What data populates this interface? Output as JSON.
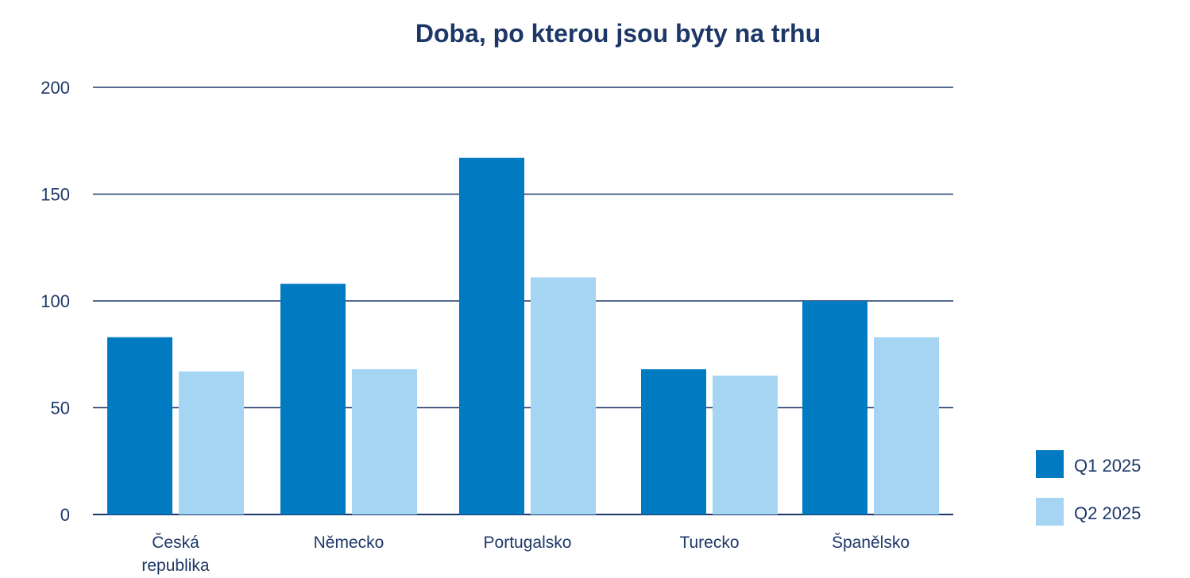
{
  "chart_data": {
    "type": "bar",
    "title": "Doba, po kterou jsou byty na trhu",
    "xlabel": "",
    "ylabel": "",
    "ylim": [
      0,
      200
    ],
    "yticks": [
      "0",
      "50",
      "100",
      "150",
      "200"
    ],
    "grid": true,
    "legend_position": "bottom-right",
    "categories": [
      [
        "Česká",
        "republika"
      ],
      [
        "Německo"
      ],
      [
        "Portugalsko"
      ],
      [
        "Turecko"
      ],
      [
        "Španělsko"
      ]
    ],
    "series": [
      {
        "name": "Q1 2025",
        "color": "#007bc2",
        "values": [
          83,
          108,
          167,
          68,
          100
        ]
      },
      {
        "name": "Q2 2025",
        "color": "#a6d5f3",
        "values": [
          67,
          68,
          111,
          65,
          83
        ]
      }
    ]
  }
}
